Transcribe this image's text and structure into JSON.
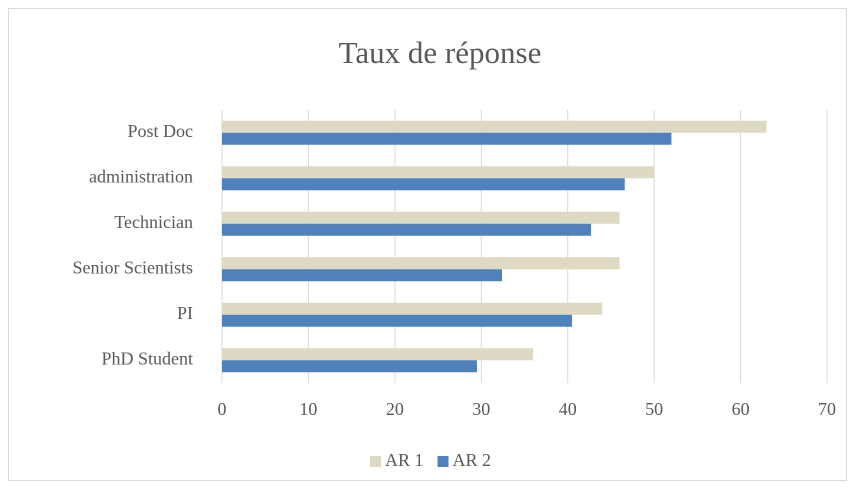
{
  "chart_data": {
    "type": "hbar",
    "title": "Taux de réponse",
    "categories": [
      "Post Doc",
      "administration",
      "Technician",
      "Senior Scientists",
      "PI",
      "PhD Student"
    ],
    "series": [
      {
        "name": "AR 1",
        "color": "#ddd9c3",
        "values": [
          63,
          50,
          46,
          46,
          44,
          36
        ]
      },
      {
        "name": "AR 2",
        "color": "#4f81bd",
        "values": [
          52,
          46.6,
          42.7,
          32.4,
          40.5,
          29.5
        ]
      }
    ],
    "xlim": [
      0,
      70
    ],
    "xticks": [
      0,
      10,
      20,
      30,
      40,
      50,
      60,
      70
    ],
    "grid": true,
    "legend": "bottom"
  }
}
